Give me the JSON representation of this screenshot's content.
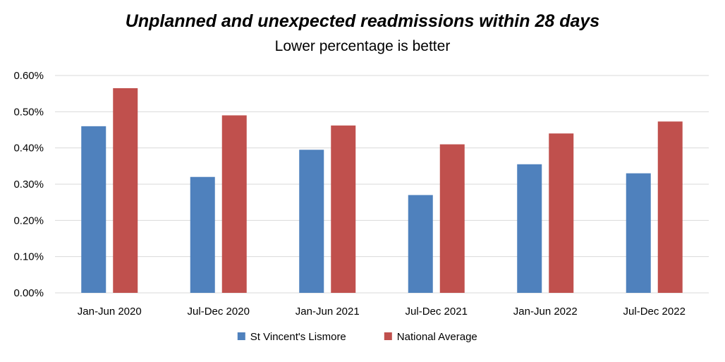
{
  "chart_data": {
    "type": "bar",
    "title": "Unplanned and unexpected readmissions within 28 days",
    "subtitle": "Lower percentage is better",
    "categories": [
      "Jan-Jun 2020",
      "Jul-Dec 2020",
      "Jan-Jun 2021",
      "Jul-Dec 2021",
      "Jan-Jun 2022",
      "Jul-Dec 2022"
    ],
    "series": [
      {
        "name": "St Vincent's Lismore",
        "color": "#4F81BD",
        "values": [
          0.46,
          0.32,
          0.395,
          0.27,
          0.355,
          0.33
        ]
      },
      {
        "name": "National Average",
        "color": "#C0504D",
        "values": [
          0.565,
          0.49,
          0.462,
          0.41,
          0.44,
          0.473
        ]
      }
    ],
    "yticks": [
      "0.00%",
      "0.10%",
      "0.20%",
      "0.30%",
      "0.40%",
      "0.50%",
      "0.60%"
    ],
    "ylim": [
      0,
      0.6
    ],
    "ylabel": "",
    "xlabel": "",
    "grid": true,
    "legend_position": "bottom"
  }
}
